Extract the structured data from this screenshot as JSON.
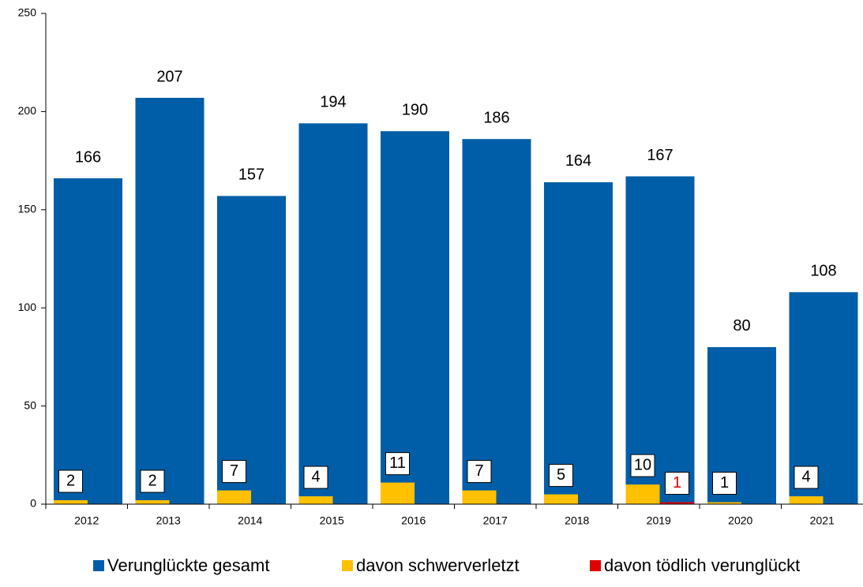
{
  "chart_data": {
    "type": "bar",
    "categories": [
      "2012",
      "2013",
      "2014",
      "2015",
      "2016",
      "2017",
      "2018",
      "2019",
      "2020",
      "2021"
    ],
    "series": [
      {
        "name": "Verunglückte gesamt",
        "color": "#005ea8",
        "values": [
          166,
          207,
          157,
          194,
          190,
          186,
          164,
          167,
          80,
          108
        ]
      },
      {
        "name": "davon schwerverletzt",
        "color": "#ffc000",
        "values": [
          2,
          2,
          7,
          4,
          11,
          7,
          5,
          10,
          1,
          4
        ]
      },
      {
        "name": "davon tödlich verunglückt",
        "color": "#e00000",
        "values": [
          null,
          null,
          null,
          null,
          null,
          null,
          null,
          1,
          null,
          null
        ]
      }
    ],
    "ylim": [
      0,
      250
    ],
    "yticks": [
      0,
      50,
      100,
      150,
      200,
      250
    ],
    "legend": "bottom"
  }
}
